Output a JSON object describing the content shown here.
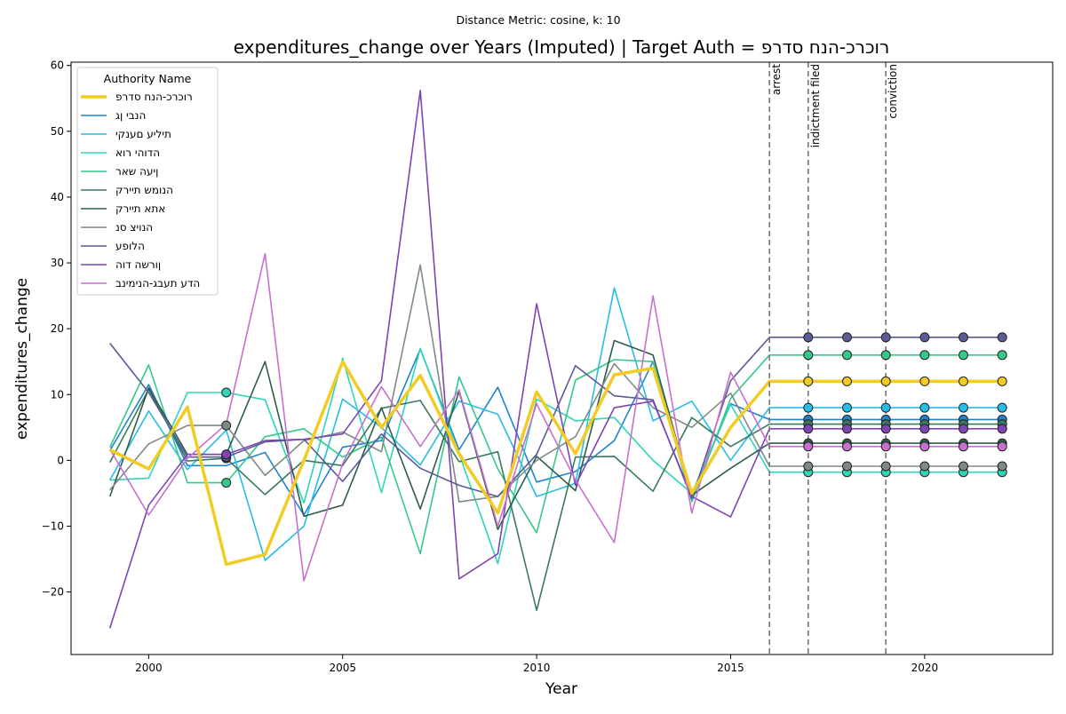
{
  "chart_data": {
    "type": "line",
    "suptitle": "Distance Metric: cosine, k: 10",
    "title": "expenditures_change over Years (Imputed) | Target Auth = רוכרכ-הנח סדרפ",
    "xlabel": "Year",
    "ylabel": "expenditures_change",
    "xlim": [
      1998,
      2023.3
    ],
    "ylim": [
      -29.5,
      60.5
    ],
    "x_ticks": [
      2000,
      2005,
      2010,
      2015,
      2020
    ],
    "y_ticks": [
      -20,
      -10,
      0,
      10,
      20,
      30,
      40,
      50,
      60
    ],
    "legend": {
      "title": "Authority Name",
      "placement": "top-left"
    },
    "grid": false,
    "x": [
      1999,
      2000,
      2001,
      2002,
      2003,
      2004,
      2005,
      2006,
      2007,
      2008,
      2009,
      2010,
      2011,
      2012,
      2013,
      2014,
      2015,
      2016,
      2017,
      2018,
      2019,
      2020,
      2021,
      2022
    ],
    "events": [
      {
        "x": 2016,
        "label": "arrest"
      },
      {
        "x": 2017,
        "label": "indictment filed"
      },
      {
        "x": 2019,
        "label": "conviction"
      }
    ],
    "series": [
      {
        "name": "רוכרכ-הנח סדרפ",
        "color": "#f2cb24",
        "target": true,
        "values": [
          1.6,
          -1.3,
          8.1,
          -15.8,
          -14.3,
          0,
          15.0,
          5.0,
          12.9,
          1.0,
          -8.0,
          10.4,
          1.0,
          13.0,
          14.0,
          -5.0,
          5.0,
          12.0,
          12.0,
          12.0,
          12.0,
          12.0,
          12.0,
          12.0
        ],
        "markers_from": 2017
      },
      {
        "name": "הנבי ןג",
        "color": "#1f83d0",
        "values": [
          1.5,
          11.5,
          -0.8,
          -0.8,
          1.2,
          -8.3,
          2.0,
          3.0,
          16.9,
          1.6,
          11.1,
          -3.3,
          -1.7,
          3.0,
          15.0,
          -5.4,
          8.6,
          6.2,
          6.2,
          6.2,
          6.2,
          6.2,
          6.2,
          6.2
        ],
        "markers_from": 2017
      },
      {
        "name": "תיליע םענקי",
        "color": "#26bde6",
        "values": [
          -3.0,
          7.5,
          -1.4,
          4.6,
          -15.2,
          -10.0,
          9.3,
          5.0,
          -0.7,
          9.0,
          7.0,
          -5.5,
          -3.5,
          26.2,
          6.0,
          9.0,
          0.0,
          8.0,
          8.0,
          8.0,
          8.0,
          8.0,
          8.0,
          8.0
        ],
        "markers_from": 2017
      },
      {
        "name": "הדוהי רוא",
        "color": "#2dd6b8",
        "values": [
          -3.0,
          -2.7,
          10.3,
          10.3,
          9.2,
          -6.5,
          15.5,
          -4.9,
          17.0,
          1.0,
          -15.7,
          9.3,
          6.0,
          6.5,
          0.0,
          -5.0,
          8.5,
          -1.8,
          -1.8,
          -1.8,
          -1.8,
          -1.8,
          -1.8,
          -1.8
        ],
        "markers_from": 2017,
        "marker_2002": true
      },
      {
        "name": "ןיעה שאר",
        "color": "#34c98a",
        "values": [
          2.0,
          14.5,
          -3.4,
          -3.4,
          3.6,
          4.8,
          0.5,
          3.5,
          -14.2,
          12.7,
          -1.3,
          -11.0,
          12.2,
          15.3,
          15.0,
          -6.3,
          9.4,
          16.0,
          16.0,
          16.0,
          16.0,
          16.0,
          16.0,
          16.0
        ],
        "markers_from": 2017,
        "marker_2002": true
      },
      {
        "name": "הנומש תיירק",
        "color": "#3a7a5d",
        "values": [
          -0.3,
          10.8,
          -0.1,
          0.3,
          -5.2,
          0.0,
          -0.8,
          7.9,
          9.1,
          -0.2,
          1.3,
          -22.8,
          0.5,
          0.6,
          -4.7,
          6.5,
          2.1,
          5.5,
          5.5,
          5.5,
          5.5,
          5.5,
          5.5,
          5.5
        ],
        "markers_from": 2017,
        "marker_2002": true
      },
      {
        "name": "אתא תיירק",
        "color": "#2f5d4d",
        "values": [
          -5.5,
          11.0,
          0.9,
          0.9,
          15.0,
          -8.5,
          -6.8,
          8.0,
          -7.4,
          10.5,
          -10.5,
          0.6,
          -4.6,
          18.2,
          16.0,
          -5.3,
          -1.2,
          2.6,
          2.6,
          2.6,
          2.6,
          2.6,
          2.6,
          2.6
        ],
        "markers_from": 2017,
        "marker_2002": true
      },
      {
        "name": "הנויצ סנ",
        "color": "#7e8a85",
        "values": [
          -4.5,
          2.5,
          5.3,
          5.3,
          -2.3,
          3.0,
          4.3,
          1.3,
          29.7,
          -6.3,
          -5.5,
          0.0,
          3.6,
          14.7,
          8.0,
          5.0,
          10.2,
          -0.9,
          -0.9,
          -0.9,
          -0.9,
          -0.9,
          -0.9,
          -0.9
        ],
        "markers_from": 2017,
        "marker_2002": true
      },
      {
        "name": "הלופע",
        "color": "#5b5b95",
        "values": [
          17.8,
          10.3,
          0.5,
          0.5,
          2.8,
          3.2,
          -3.2,
          4.0,
          -1.2,
          -3.8,
          -5.5,
          0.9,
          14.4,
          9.8,
          9.2,
          -5.8,
          12.1,
          18.7,
          18.7,
          18.7,
          18.7,
          18.7,
          18.7,
          18.7
        ],
        "markers_from": 2017,
        "marker_2002": true
      },
      {
        "name": "ןורשה דוה",
        "color": "#7d45b3",
        "values": [
          -25.5,
          -6.8,
          0.9,
          0.9,
          3.0,
          3.2,
          4.0,
          12.1,
          56.2,
          -18.0,
          -14.2,
          23.8,
          -3.8,
          8.0,
          9.0,
          -5.5,
          -8.6,
          4.8,
          4.8,
          4.8,
          4.8,
          4.8,
          4.8,
          4.8
        ],
        "markers_from": 2017,
        "marker_2002": true
      },
      {
        "name": "הדע תעבג-הנימינב",
        "color": "#c86fd0",
        "values": [
          1.7,
          -8.3,
          0.3,
          5.5,
          31.4,
          -18.3,
          -0.5,
          11.2,
          2.1,
          10.7,
          -10.0,
          8.6,
          -3.0,
          -12.5,
          25.0,
          -8.0,
          13.4,
          2.1,
          2.1,
          2.1,
          2.1,
          2.1,
          2.1,
          2.1
        ],
        "markers_from": 2017
      }
    ]
  }
}
